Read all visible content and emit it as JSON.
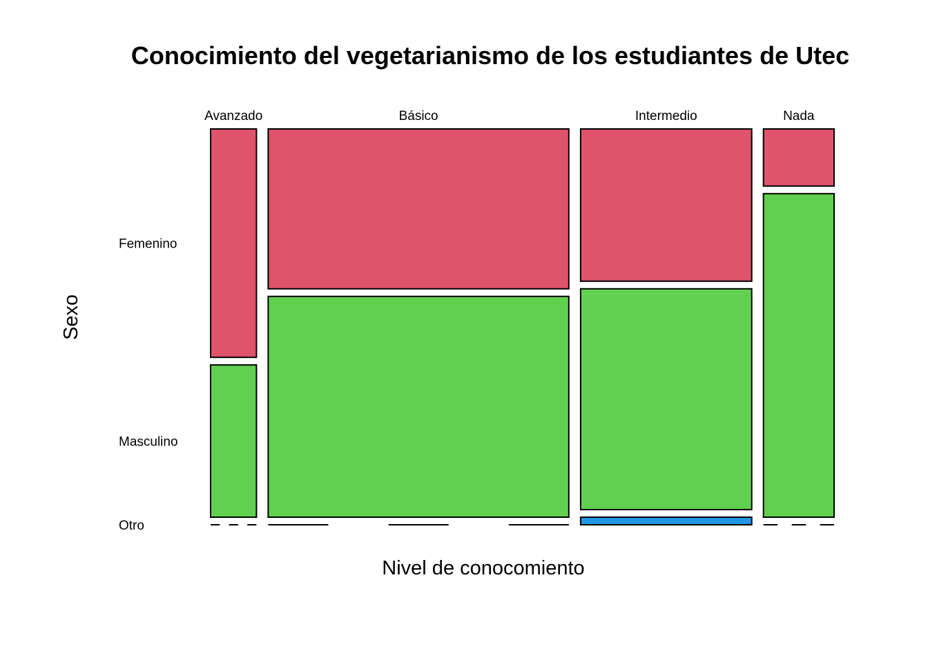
{
  "chart_data": {
    "type": "mosaic",
    "title": "Conocimiento del vegetarianismo de los estudiantes de Utec",
    "xlabel": "Nivel de conocomiento",
    "ylabel": "Sexo",
    "categories": [
      "Avanzado",
      "Básico",
      "Intermedio",
      "Nada"
    ],
    "column_widths": [
      0.074,
      0.485,
      0.276,
      0.114
    ],
    "levels": [
      "Femenino",
      "Masculino",
      "Otro"
    ],
    "proportions": [
      {
        "category": "Avanzado",
        "values": [
          0.6,
          0.4,
          0.0
        ]
      },
      {
        "category": "Básico",
        "values": [
          0.42,
          0.58,
          0.0
        ]
      },
      {
        "category": "Intermedio",
        "values": [
          0.4,
          0.58,
          0.02
        ]
      },
      {
        "category": "Nada",
        "values": [
          0.15,
          0.85,
          0.0
        ]
      }
    ],
    "colors": {
      "Femenino": "#DF536B",
      "Masculino": "#61D04F",
      "Otro": "#2297E6"
    },
    "grid": false,
    "legend": "none"
  }
}
